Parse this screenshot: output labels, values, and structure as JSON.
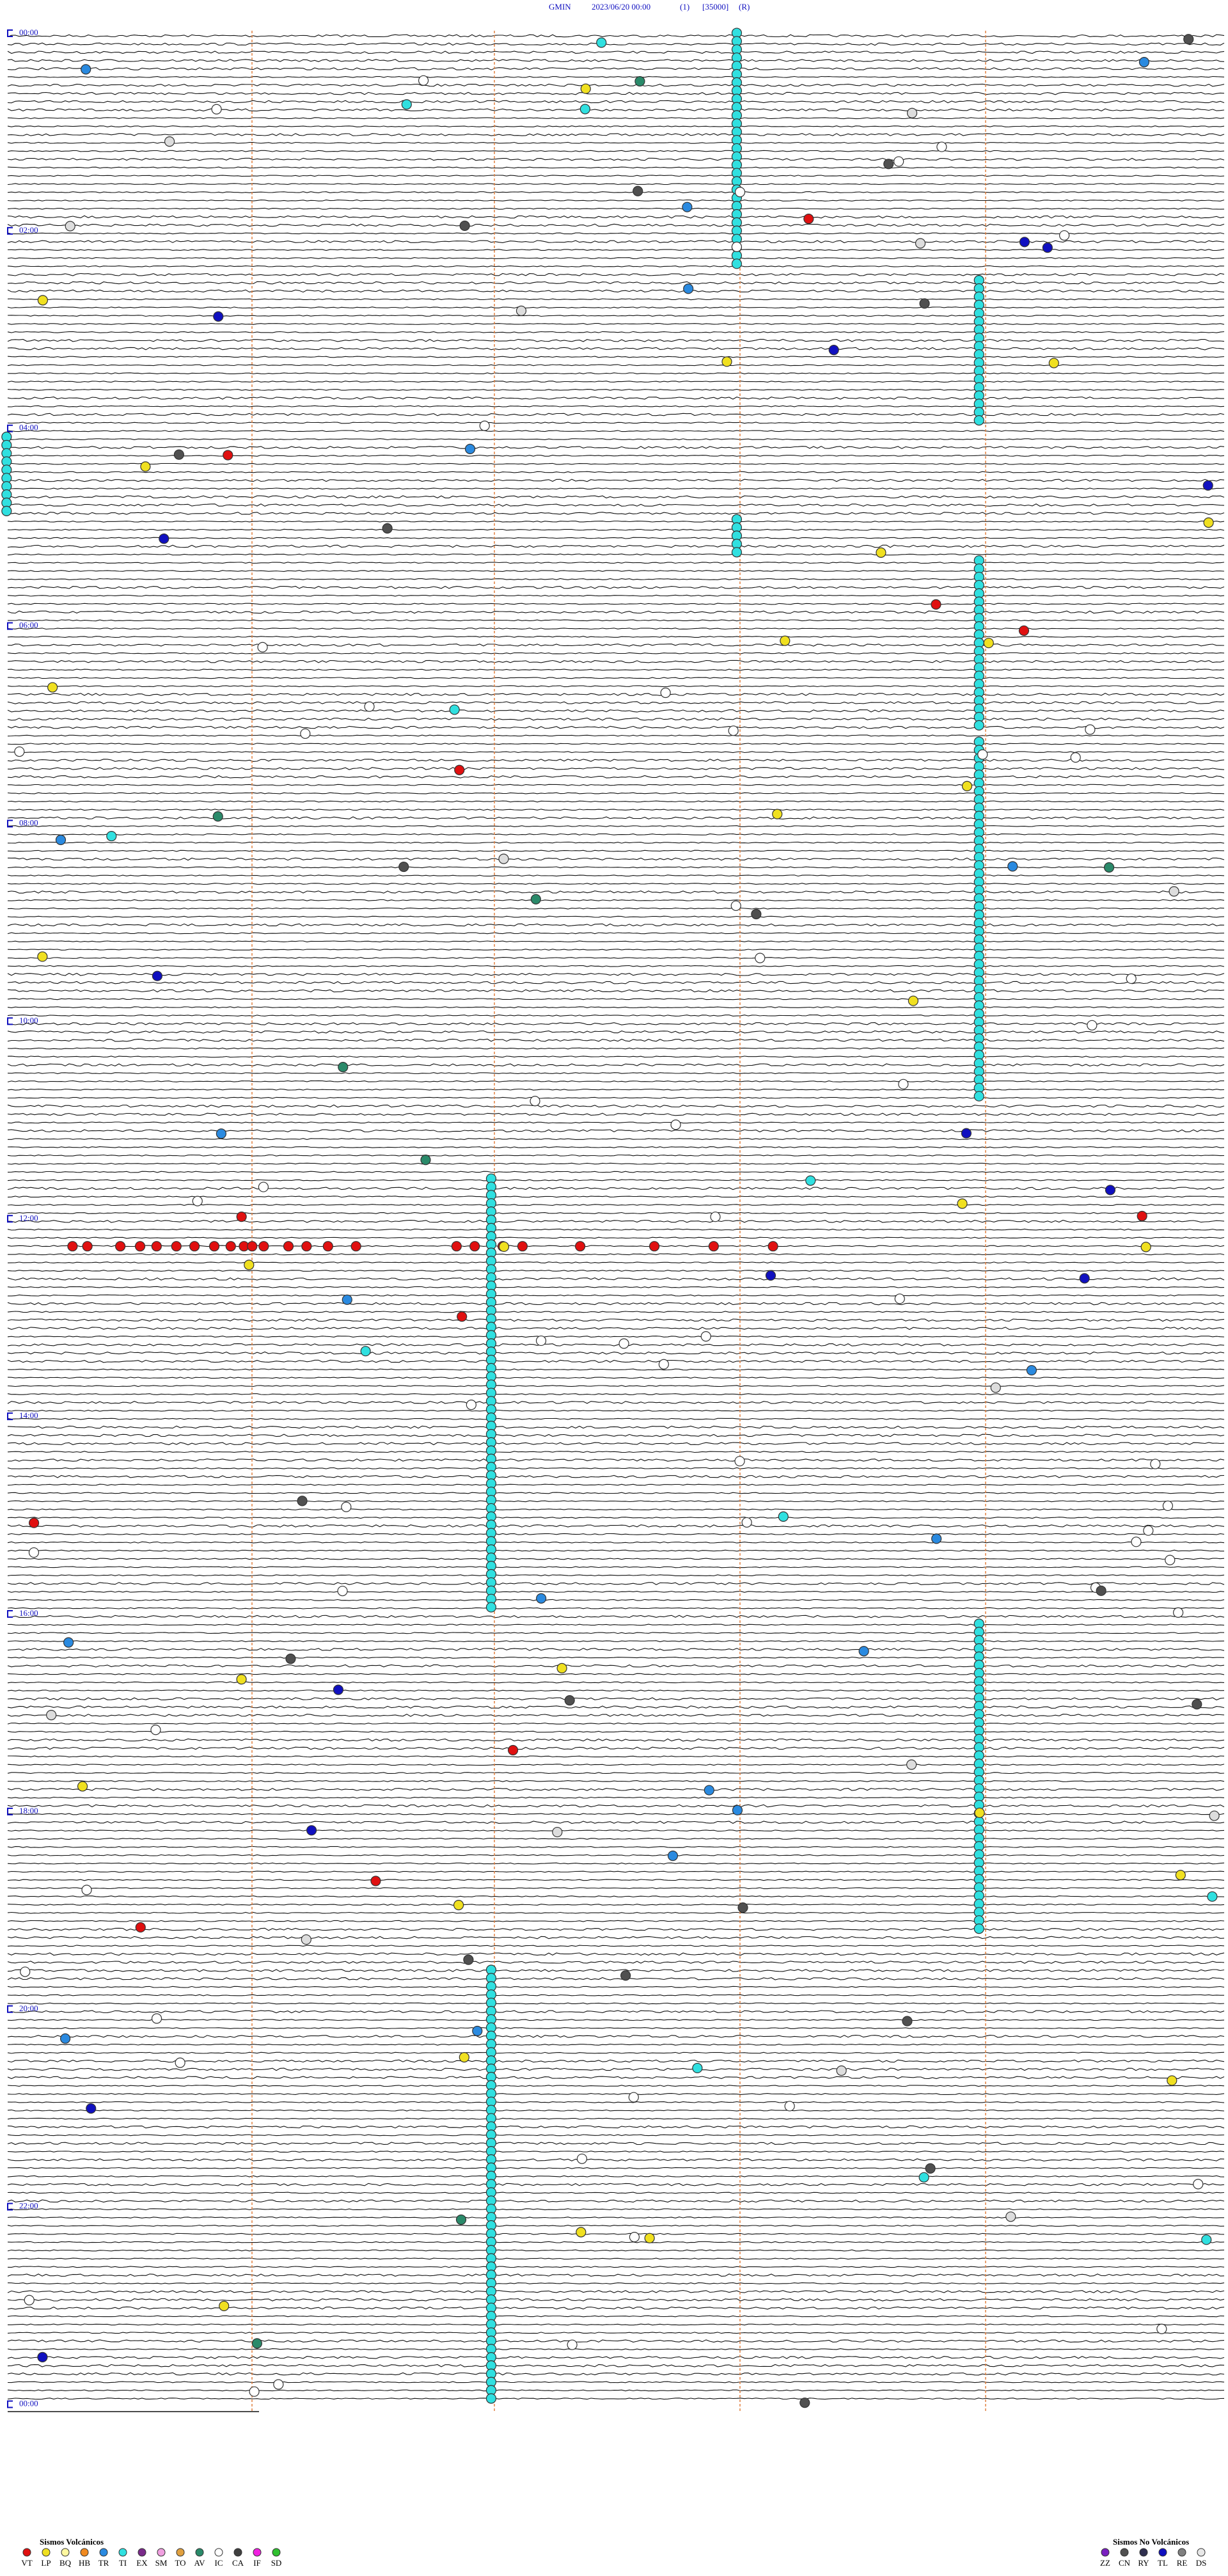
{
  "header": {
    "station": "GMIN",
    "datetime": "2023/06/20 00:00",
    "channel": "(1)",
    "scale": "[35000]",
    "mode": "(R)"
  },
  "time_labels": [
    "00:00",
    "02:00",
    "04:00",
    "06:00",
    "08:00",
    "10:00",
    "12:00",
    "14:00",
    "16:00",
    "18:00",
    "20:00",
    "22:00",
    "00:00"
  ],
  "legend": {
    "volcanic": {
      "title": "Sismos Volcánicos",
      "codes": [
        {
          "code": "VT",
          "color": "#e01010"
        },
        {
          "code": "LP",
          "color": "#f0e020"
        },
        {
          "code": "BQ",
          "color": "#fff8a0"
        },
        {
          "code": "HB",
          "color": "#f08a20"
        },
        {
          "code": "TR",
          "color": "#2a8ae0"
        },
        {
          "code": "TI",
          "color": "#30e0e0"
        },
        {
          "code": "EX",
          "color": "#7a2a8a"
        },
        {
          "code": "SM",
          "color": "#f0a0e0"
        },
        {
          "code": "TO",
          "color": "#e0a040"
        },
        {
          "code": "AV",
          "color": "#2a8a6a"
        },
        {
          "code": "IC",
          "color": "#ffffff"
        },
        {
          "code": "CA",
          "color": "#404040"
        },
        {
          "code": "IF",
          "color": "#f020e0"
        },
        {
          "code": "SD",
          "color": "#30c030"
        }
      ]
    },
    "non_volcanic": {
      "title": "Sismos No Volcánicos",
      "codes": [
        {
          "code": "ZZ",
          "color": "#7a20c0"
        },
        {
          "code": "CN",
          "color": "#505050"
        },
        {
          "code": "RY",
          "color": "#303050"
        },
        {
          "code": "TL",
          "color": "#1010c0"
        },
        {
          "code": "RE",
          "color": "#808080"
        },
        {
          "code": "DS",
          "color": "#e8e8e8"
        }
      ]
    }
  }
}
